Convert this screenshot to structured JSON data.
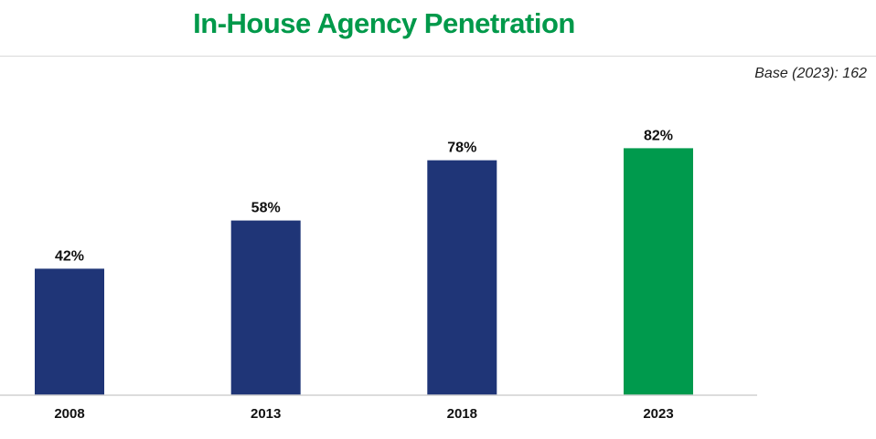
{
  "header": {
    "title": "In-House Agency Penetration",
    "base_note": "Base (2023): 162"
  },
  "colors": {
    "title": "#00994a",
    "bar_default": "#1f3577",
    "bar_highlight": "#009a4d",
    "axis": "#d0d0d0"
  },
  "chart_data": {
    "type": "bar",
    "title": "In-House Agency Penetration",
    "subtitle": "Base (2023): 162",
    "categories": [
      "2008",
      "2013",
      "2018",
      "2023"
    ],
    "values": [
      42,
      58,
      78,
      82
    ],
    "value_labels": [
      "42%",
      "58%",
      "78%",
      "82%"
    ],
    "unit": "%",
    "highlight_category": "2023",
    "ylim": [
      0,
      100
    ],
    "grid": false,
    "legend": "none",
    "xlabel": "",
    "ylabel": ""
  }
}
